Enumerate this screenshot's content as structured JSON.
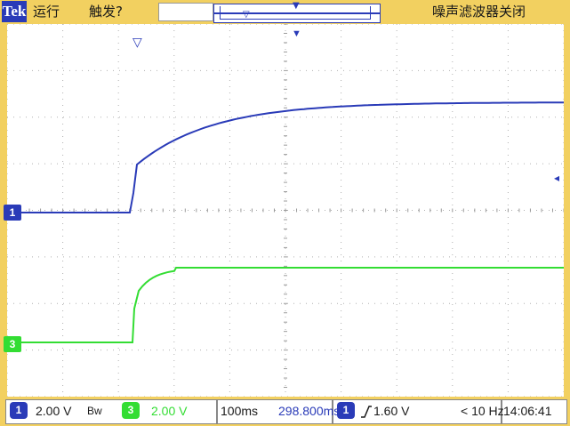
{
  "header": {
    "brand": "Tek",
    "run_state": "运行",
    "trigger_status": "触发?",
    "noise_filter": "噪声滤波器关闭"
  },
  "channels": {
    "ch1_marker": "1",
    "ch3_marker": "3",
    "ch1_color": "#2a3bb8",
    "ch3_color": "#33dd33"
  },
  "footer": {
    "ch1_badge": "1",
    "ch1_scale": "2.00 V",
    "bandwidth_label": "Bw",
    "ch3_badge": "3",
    "ch3_scale": "2.00 V",
    "timebase": "100ms",
    "position": "298.800ms",
    "trigger_source_badge": "1",
    "trigger_slope_icon": "rising-edge-icon",
    "trigger_level": "1.60 V",
    "trigger_freq": "< 10 Hz",
    "time": "14:06:41"
  },
  "colors": {
    "bezel": "#f2d060",
    "grid": "#b0b0b0"
  }
}
